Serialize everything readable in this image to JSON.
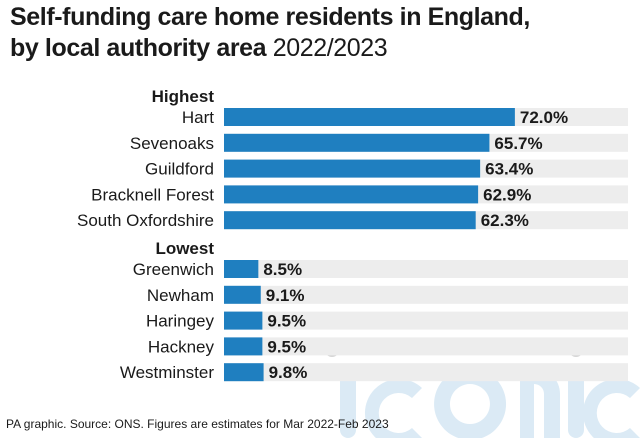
{
  "title_bold": "Self-funding care home residents in England,",
  "title_bold2": "by local authority area",
  "title_light": "2022/2023",
  "footer": "PA graphic. Source: ONS. Figures are estimates for Mar 2022-Feb 2023",
  "colors": {
    "bar": "#1f7fc0",
    "track": "#ededed",
    "text": "#1a1a1a",
    "watermark": "#cfe4f2"
  },
  "chart_data": {
    "type": "bar",
    "orientation": "horizontal",
    "unit": "%",
    "xlim": [
      0,
      100
    ],
    "groups": [
      {
        "label": "Highest",
        "categories": [
          "Hart",
          "Sevenoaks",
          "Guildford",
          "Bracknell Forest",
          "South Oxfordshire"
        ],
        "values": [
          72.0,
          65.7,
          63.4,
          62.9,
          62.3
        ],
        "labels": [
          "72.0%",
          "65.7%",
          "63.4%",
          "62.9%",
          "62.3%"
        ]
      },
      {
        "label": "Lowest",
        "categories": [
          "Greenwich",
          "Newham",
          "Haringey",
          "Hackney",
          "Westminster"
        ],
        "values": [
          8.5,
          9.1,
          9.5,
          9.5,
          9.8
        ],
        "labels": [
          "8.5%",
          "9.1%",
          "9.5%",
          "9.5%",
          "9.8%"
        ]
      }
    ]
  }
}
